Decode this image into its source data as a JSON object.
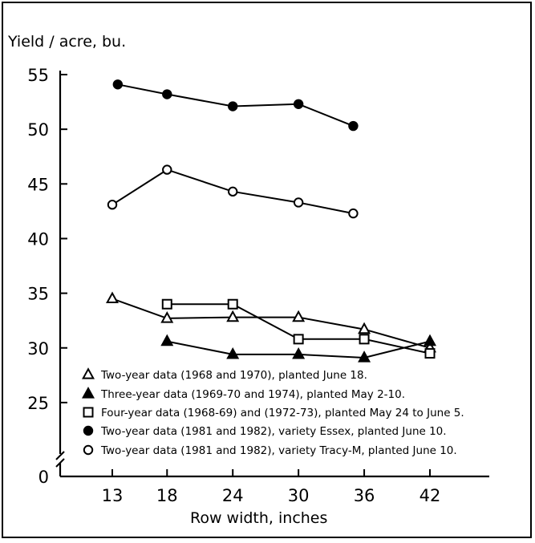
{
  "chart_data": {
    "type": "line",
    "ylabel": "Yield / acre, bu.",
    "xlabel": "Row width, inches",
    "x_ticks": [
      "13",
      "18",
      "24",
      "30",
      "36",
      "42"
    ],
    "y_ticks": [
      "55",
      "50",
      "45",
      "40",
      "35",
      "30",
      "25",
      "0"
    ],
    "y_axis_break": "between 0 and 25",
    "ylim": [
      25,
      55
    ],
    "xlim": [
      10,
      46
    ],
    "grid": false,
    "legend_placement": "bottom",
    "series": [
      {
        "name": "Two-year data (1968 and 1970), planted June 18.",
        "marker": "open-triangle",
        "points": [
          [
            13,
            34.5
          ],
          [
            18,
            32.7
          ],
          [
            24,
            32.8
          ],
          [
            30,
            32.8
          ],
          [
            36,
            31.7
          ],
          [
            42,
            30.0
          ]
        ]
      },
      {
        "name": "Three-year data (1969-70 and 1974), planted May 2-10.",
        "marker": "filled-triangle",
        "points": [
          [
            18,
            30.6
          ],
          [
            24,
            29.4
          ],
          [
            30,
            29.4
          ],
          [
            36,
            29.1
          ],
          [
            42,
            30.6
          ]
        ]
      },
      {
        "name": "Four-year data (1968-69) and (1972-73), planted May 24 to June 5.",
        "marker": "open-square",
        "points": [
          [
            18,
            34.0
          ],
          [
            24,
            34.0
          ],
          [
            30,
            30.8
          ],
          [
            36,
            30.8
          ],
          [
            42,
            29.5
          ]
        ]
      },
      {
        "name": "Two-year data (1981 and 1982), variety Essex, planted June 10.",
        "marker": "filled-circle",
        "points": [
          [
            13.5,
            54.1
          ],
          [
            18,
            53.2
          ],
          [
            24,
            52.1
          ],
          [
            30,
            52.3
          ],
          [
            35,
            50.3
          ]
        ]
      },
      {
        "name": "Two-year data (1981 and 1982), variety Tracy-M, planted June 10.",
        "marker": "open-circle",
        "points": [
          [
            13,
            43.1
          ],
          [
            18,
            46.3
          ],
          [
            24,
            44.3
          ],
          [
            30,
            43.3
          ],
          [
            35,
            42.3
          ]
        ]
      }
    ]
  }
}
